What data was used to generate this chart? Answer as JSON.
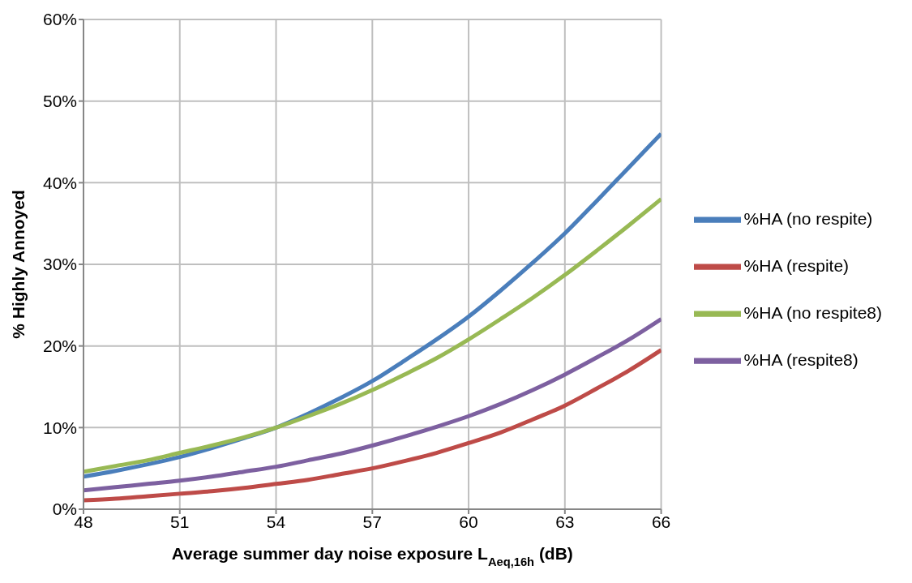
{
  "chart_data": {
    "type": "line",
    "xlabel": "Average summer day noise exposure L$_{Aeq,16h}$ (dB)",
    "ylabel": "% Highly Annoyed",
    "x": [
      48,
      49,
      50,
      51,
      52,
      53,
      54,
      55,
      56,
      57,
      58,
      59,
      60,
      61,
      62,
      63,
      64,
      65,
      66
    ],
    "series": [
      {
        "name": "%HA (no respite)",
        "color": "#4a7ebb",
        "values": [
          4.0,
          4.7,
          5.5,
          6.4,
          7.5,
          8.7,
          10.0,
          11.7,
          13.6,
          15.7,
          18.2,
          20.8,
          23.6,
          26.8,
          30.2,
          33.8,
          37.8,
          41.9,
          46.0
        ]
      },
      {
        "name": "%HA (respite)",
        "color": "#be4b48",
        "values": [
          1.1,
          1.3,
          1.6,
          1.9,
          2.2,
          2.6,
          3.1,
          3.6,
          4.3,
          5.0,
          5.9,
          6.9,
          8.1,
          9.4,
          11.0,
          12.7,
          14.8,
          17.0,
          19.5
        ]
      },
      {
        "name": "%HA (no respite8)",
        "color": "#98b954",
        "values": [
          4.6,
          5.3,
          6.0,
          6.9,
          7.8,
          8.8,
          10.0,
          11.4,
          12.9,
          14.6,
          16.5,
          18.5,
          20.8,
          23.3,
          25.9,
          28.7,
          31.7,
          34.8,
          38.0
        ]
      },
      {
        "name": "%HA (respite8)",
        "color": "#7d60a0",
        "values": [
          2.3,
          2.7,
          3.1,
          3.5,
          4.0,
          4.6,
          5.2,
          6.0,
          6.8,
          7.8,
          8.9,
          10.1,
          11.4,
          12.9,
          14.6,
          16.5,
          18.6,
          20.8,
          23.3
        ]
      }
    ],
    "xlim": [
      48,
      66
    ],
    "xticks": [
      48,
      51,
      54,
      57,
      60,
      63,
      66
    ],
    "ylim": [
      0,
      60
    ],
    "yticks": [
      {
        "value": 0,
        "label": "0%"
      },
      {
        "value": 10,
        "label": "10%"
      },
      {
        "value": 20,
        "label": "20%"
      },
      {
        "value": 30,
        "label": "30%"
      },
      {
        "value": 40,
        "label": "40%"
      },
      {
        "value": 50,
        "label": "50%"
      },
      {
        "value": 60,
        "label": "60%"
      }
    ],
    "grid": true,
    "legend": "right",
    "marker": "none",
    "line_style": "solid"
  }
}
